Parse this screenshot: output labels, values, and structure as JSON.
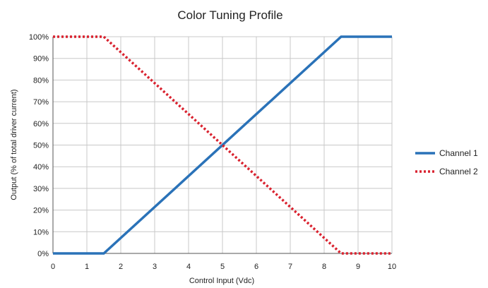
{
  "chart_data": {
    "type": "line",
    "title": "Color Tuning Profile",
    "xlabel": "Control Input (Vdc)",
    "ylabel": "Output (% of total driver current)",
    "xlim": [
      0,
      10
    ],
    "ylim": [
      0,
      100
    ],
    "x_ticks": [
      "0",
      "1",
      "2",
      "3",
      "4",
      "5",
      "6",
      "7",
      "8",
      "9",
      "10"
    ],
    "y_ticks": [
      "0%",
      "10%",
      "20%",
      "30%",
      "40%",
      "50%",
      "60%",
      "70%",
      "80%",
      "90%",
      "100%"
    ],
    "grid": true,
    "legend_position": "right",
    "series": [
      {
        "name": "Channel 1",
        "color": "#2a72b8",
        "style": "solid",
        "x": [
          0,
          1.5,
          8.5,
          10
        ],
        "y": [
          0,
          0,
          100,
          100
        ]
      },
      {
        "name": "Channel 2",
        "color": "#d9222f",
        "style": "dotted",
        "x": [
          0,
          1.5,
          8.5,
          10
        ],
        "y": [
          100,
          100,
          0,
          0
        ]
      }
    ]
  }
}
